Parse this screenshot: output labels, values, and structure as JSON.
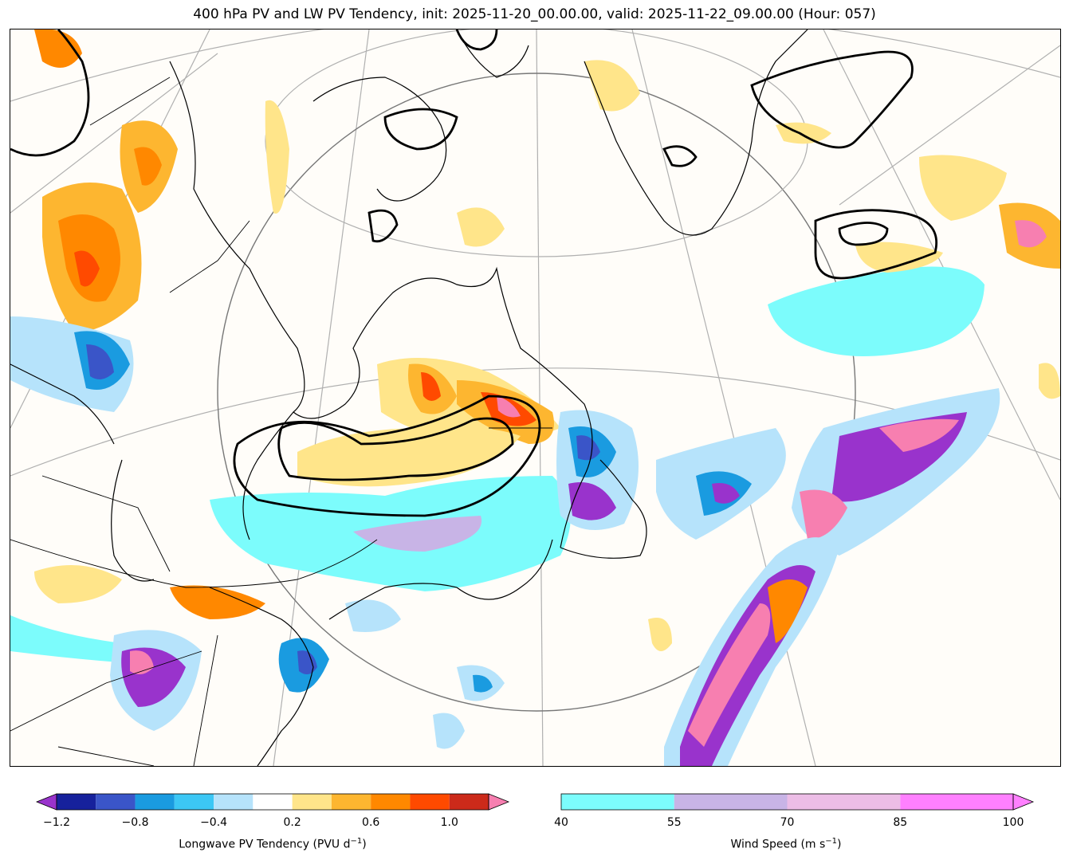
{
  "title": "400 hPa PV and LW PV Tendency, init: 2025-11-20_00.00.00, valid: 2025-11-22_09.00.00 (Hour: 057)",
  "colorbar_pv": {
    "label_main": "Longwave PV Tendency (PVU d",
    "label_exp": "−1",
    "label_close": ")",
    "ticks": [
      "−1.2",
      "−0.8",
      "−0.4",
      "0.2",
      "0.6",
      "1.0"
    ],
    "colors": [
      "#9933cc",
      "#16219c",
      "#3a55c8",
      "#1a9be0",
      "#3cc7f5",
      "#b6e3fb",
      "#ffffff",
      "#ffe58a",
      "#fdb630",
      "#ff8800",
      "#ff4a00",
      "#cc2a1a",
      "#f77fb0"
    ]
  },
  "colorbar_wind": {
    "label_main": "Wind Speed (m s",
    "label_exp": "−1",
    "label_close": ")",
    "ticks": [
      "40",
      "55",
      "70",
      "85",
      "100"
    ],
    "colors": [
      "#7cfcfc",
      "#c8b4e6",
      "#ecbde6",
      "#ff80ff"
    ]
  }
}
